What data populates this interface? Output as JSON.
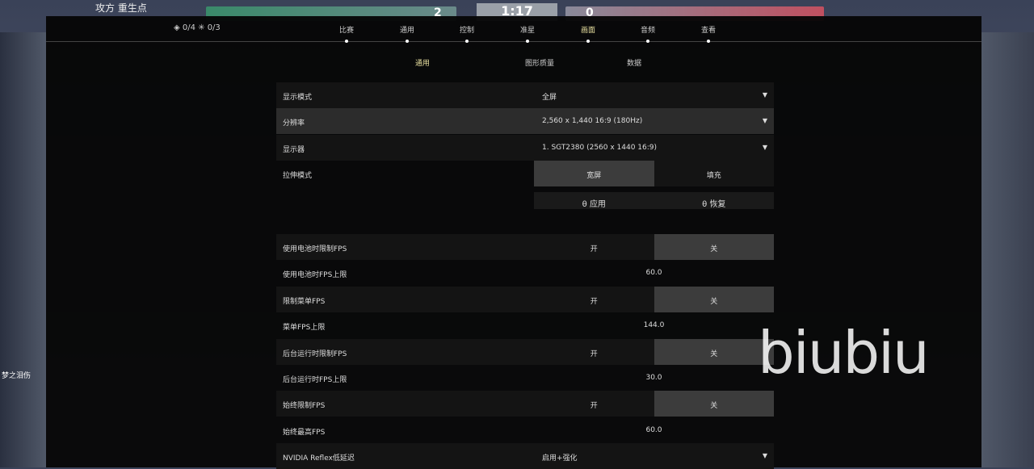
{
  "hud": {
    "side_label": "攻方 重生点",
    "ally_score": "2",
    "timer": "1:17",
    "enemy_score": "0",
    "left_player": "梦之泪伤"
  },
  "header": {
    "counts": "◈ 0/4  ✳ 0/3"
  },
  "tabs": [
    {
      "label": "比赛"
    },
    {
      "label": "通用"
    },
    {
      "label": "控制"
    },
    {
      "label": "准星"
    },
    {
      "label": "画面",
      "active": true
    },
    {
      "label": "音频"
    },
    {
      "label": "查看"
    }
  ],
  "subtabs": [
    {
      "label": "通用",
      "active": true
    },
    {
      "label": "图形质量"
    },
    {
      "label": "数据"
    }
  ],
  "settings": {
    "display_mode": {
      "label": "显示模式",
      "value": "全屏"
    },
    "resolution": {
      "label": "分辨率",
      "value": "2,560 x 1,440 16:9 (180Hz)"
    },
    "monitor": {
      "label": "显示器",
      "value": "1. SGT2380 (2560 x  1440 16:9)"
    },
    "stretch": {
      "label": "拉伸模式",
      "options": [
        "宽屏",
        "填充"
      ],
      "selected": "宽屏"
    },
    "apply": "θ 应用",
    "restore": "θ 恢复",
    "battery_limit": {
      "label": "使用电池时限制FPS",
      "on": "开",
      "off": "关",
      "selected": "关"
    },
    "battery_max": {
      "label": "使用电池时FPS上限",
      "value": "60.0"
    },
    "menu_limit": {
      "label": "限制菜单FPS",
      "on": "开",
      "off": "关",
      "selected": "关"
    },
    "menu_max": {
      "label": "菜单FPS上限",
      "value": "144.0"
    },
    "bg_limit": {
      "label": "后台运行时限制FPS",
      "on": "开",
      "off": "关",
      "selected": "关"
    },
    "bg_max": {
      "label": "后台运行时FPS上限",
      "value": "30.0"
    },
    "always_limit": {
      "label": "始终限制FPS",
      "on": "开",
      "off": "关",
      "selected": "关"
    },
    "always_max": {
      "label": "始终最高FPS",
      "value": "60.0"
    },
    "reflex": {
      "label": "NVIDIA Reflex低延迟",
      "value": "启用+强化"
    }
  },
  "watermark": "biubiu",
  "colors": {
    "active_tab": "#e8e0a0",
    "selected_segment": "#3c3c3c"
  }
}
